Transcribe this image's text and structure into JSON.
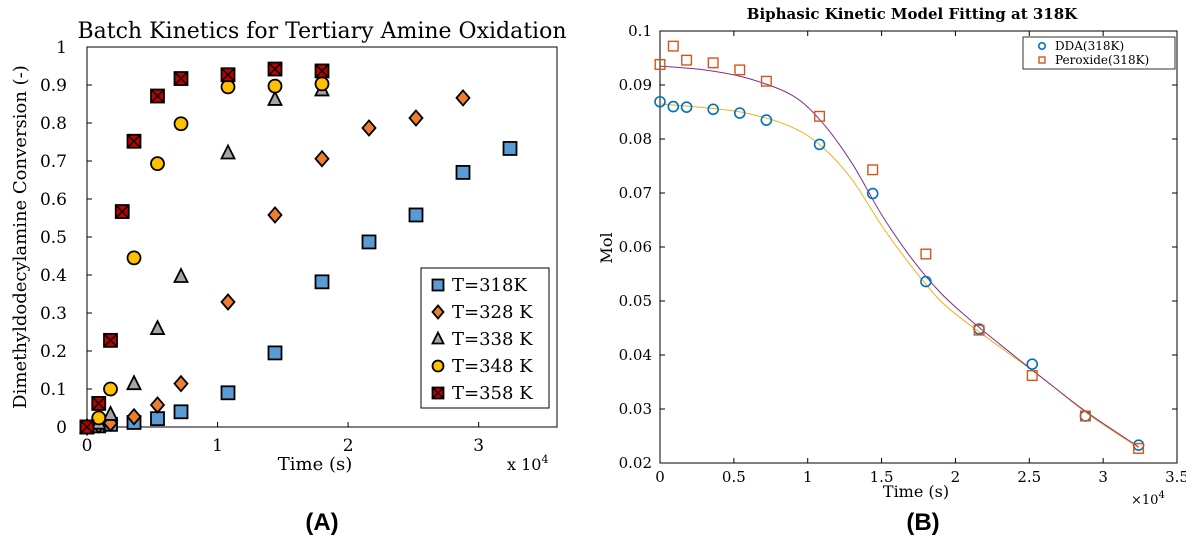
{
  "panels": {
    "a_label": "(A)",
    "b_label": "(B)"
  },
  "chart_data": [
    {
      "type": "scatter",
      "title": "Batch Kinetics for Tertiary Amine Oxidation",
      "xlabel": "Time (s)",
      "x_multiplier": "x 10",
      "x_multiplier_exp": "4",
      "ylabel": "Dimethyldodecylamine Conversion (-)",
      "xlim": [
        0,
        3.6
      ],
      "ylim": [
        0,
        1
      ],
      "xticks": [
        "0",
        "1",
        "2",
        "3"
      ],
      "yticks": [
        "0",
        "0.1",
        "0.2",
        "0.3",
        "0.4",
        "0.5",
        "0.6",
        "0.7",
        "0.8",
        "0.9",
        "1"
      ],
      "legend_position": "bottom-right",
      "series": [
        {
          "name": "T=318K",
          "marker": "square",
          "color": "#5b9bd5",
          "x": [
            0,
            0.09,
            0.18,
            0.36,
            0.54,
            0.72,
            1.08,
            1.44,
            1.8,
            2.16,
            2.52,
            2.88,
            3.24
          ],
          "y": [
            0,
            0.003,
            0.007,
            0.012,
            0.022,
            0.04,
            0.09,
            0.195,
            0.382,
            0.487,
            0.558,
            0.67,
            0.733
          ]
        },
        {
          "name": "T=328 K",
          "marker": "diamond",
          "color": "#ed7d31",
          "x": [
            0,
            0.09,
            0.18,
            0.36,
            0.54,
            0.72,
            1.08,
            1.44,
            1.8,
            2.16,
            2.52,
            2.88
          ],
          "y": [
            0,
            0.005,
            0.01,
            0.027,
            0.058,
            0.114,
            0.329,
            0.558,
            0.706,
            0.787,
            0.813,
            0.866
          ]
        },
        {
          "name": "T=338 K",
          "marker": "triangle",
          "color": "#a5a5a5",
          "x": [
            0,
            0.09,
            0.18,
            0.36,
            0.54,
            0.72,
            1.08,
            1.44,
            1.8
          ],
          "y": [
            0,
            0.01,
            0.033,
            0.114,
            0.259,
            0.396,
            0.721,
            0.862,
            0.887
          ]
        },
        {
          "name": "T=348 K",
          "marker": "circle",
          "color": "#ffc000",
          "x": [
            0,
            0.09,
            0.18,
            0.36,
            0.54,
            0.72,
            1.08,
            1.44,
            1.8
          ],
          "y": [
            0,
            0.024,
            0.1,
            0.445,
            0.693,
            0.798,
            0.895,
            0.897,
            0.903
          ]
        },
        {
          "name": "T=358 K",
          "marker": "xsquare",
          "color": "#c00000",
          "x": [
            0,
            0.09,
            0.18,
            0.27,
            0.36,
            0.54,
            0.72,
            1.08,
            1.44,
            1.8
          ],
          "y": [
            0,
            0.062,
            0.228,
            0.567,
            0.752,
            0.871,
            0.917,
            0.927,
            0.942,
            0.937
          ]
        }
      ]
    },
    {
      "type": "line",
      "title": "Biphasic Kinetic Model Fitting at 318K",
      "xlabel": "Time (s)",
      "x_multiplier": "×10",
      "x_multiplier_exp": "4",
      "ylabel": "Mol",
      "xlim": [
        0,
        3.5
      ],
      "ylim": [
        0.02,
        0.1
      ],
      "xticks": [
        "0",
        "0.5",
        "1",
        "1.5",
        "2",
        "2.5",
        "3",
        "3.5"
      ],
      "yticks": [
        "0.02",
        "0.03",
        "0.04",
        "0.05",
        "0.06",
        "0.07",
        "0.08",
        "0.09",
        "0.1"
      ],
      "legend_position": "top-right",
      "series": [
        {
          "name": "DDA(318K)",
          "marker": "circle",
          "color": "#0072bd",
          "x": [
            0,
            0.09,
            0.18,
            0.36,
            0.54,
            0.72,
            1.08,
            1.44,
            1.8,
            2.16,
            2.52,
            2.88,
            3.24
          ],
          "y": [
            0.0869,
            0.086,
            0.0859,
            0.0855,
            0.0848,
            0.0835,
            0.079,
            0.0699,
            0.0536,
            0.0448,
            0.0383,
            0.0287,
            0.0233
          ]
        },
        {
          "name": "Peroxide(318K)",
          "marker": "square",
          "color": "#d95319",
          "x": [
            0,
            0.09,
            0.18,
            0.36,
            0.54,
            0.72,
            1.08,
            1.44,
            1.8,
            2.16,
            2.52,
            2.88,
            3.24
          ],
          "y": [
            0.0938,
            0.0972,
            0.0946,
            0.0941,
            0.0928,
            0.0907,
            0.0842,
            0.0743,
            0.0587,
            0.0446,
            0.0362,
            0.0287,
            0.0227
          ]
        }
      ],
      "fits": [
        {
          "color": "#edb120",
          "x": [
            0,
            0.3,
            0.6,
            0.9,
            1.1,
            1.3,
            1.5,
            1.7,
            1.9,
            2.1,
            2.3,
            2.6,
            2.9,
            3.24
          ],
          "y": [
            0.0865,
            0.0858,
            0.0847,
            0.0821,
            0.0785,
            0.0725,
            0.064,
            0.0565,
            0.05,
            0.0455,
            0.0415,
            0.0355,
            0.029,
            0.0228
          ]
        },
        {
          "color": "#7e2f8e",
          "x": [
            0,
            0.3,
            0.6,
            0.9,
            1.1,
            1.3,
            1.5,
            1.7,
            1.9,
            2.1,
            2.3,
            2.6,
            2.9,
            3.24
          ],
          "y": [
            0.0935,
            0.0928,
            0.0912,
            0.088,
            0.083,
            0.0755,
            0.066,
            0.058,
            0.0515,
            0.0465,
            0.042,
            0.0355,
            0.0292,
            0.023
          ]
        }
      ]
    }
  ]
}
